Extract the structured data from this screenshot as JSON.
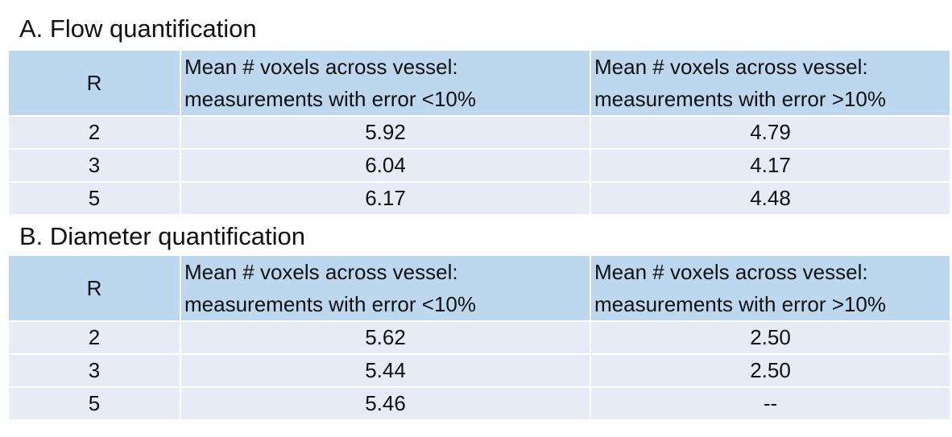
{
  "tables": [
    {
      "title": "A. Flow quantification",
      "header": [
        [
          "R"
        ],
        [
          "Mean # voxels across vessel:",
          "measurements with error <10%"
        ],
        [
          "Mean # voxels across vessel:",
          "measurements with error >10%"
        ]
      ],
      "rows": [
        [
          "2",
          "5.92",
          "4.79"
        ],
        [
          "3",
          "6.04",
          "4.17"
        ],
        [
          "5",
          "6.17",
          "4.48"
        ]
      ]
    },
    {
      "title": "B. Diameter quantification",
      "header": [
        [
          "R"
        ],
        [
          "Mean # voxels across vessel:",
          "measurements with error <10%"
        ],
        [
          "Mean # voxels across vessel:",
          "measurements with error >10%"
        ]
      ],
      "rows": [
        [
          "2",
          "5.62",
          "2.50"
        ],
        [
          "3",
          "5.44",
          "2.50"
        ],
        [
          "5",
          "5.46",
          "--"
        ]
      ]
    }
  ]
}
